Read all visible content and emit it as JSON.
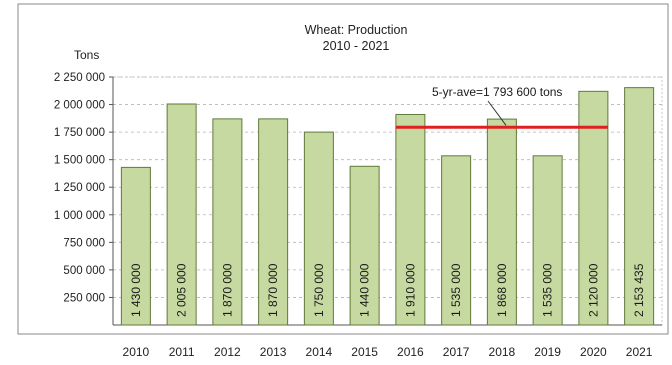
{
  "chart_data": {
    "type": "bar",
    "title": [
      "Wheat: Production",
      "2010 - 2021"
    ],
    "ylabel": "Tons",
    "xlabel": "",
    "categories": [
      "2010",
      "2011",
      "2012",
      "2013",
      "2014",
      "2015",
      "2016",
      "2017",
      "2018",
      "2019",
      "2020",
      "2021"
    ],
    "values": [
      1430000,
      2005000,
      1870000,
      1870000,
      1750000,
      1440000,
      1910000,
      1535000,
      1868000,
      1535000,
      2120000,
      2153435
    ],
    "data_labels": [
      "1 430 000",
      "2 005 000",
      "1 870 000",
      "1 870 000",
      "1 750 000",
      "1 440 000",
      "1 910 000",
      "1 535 000",
      "1 868 000",
      "1 535 000",
      "2 120 000",
      "2 153 435"
    ],
    "ylim": [
      0,
      2250000
    ],
    "yticks": [
      250000,
      500000,
      750000,
      1000000,
      1250000,
      1500000,
      1750000,
      2000000,
      2250000
    ],
    "ytick_labels": [
      "250 000",
      "500 000",
      "750 000",
      "1 000 000",
      "1 250 000",
      "1 500 000",
      "1 750 000",
      "2 000 000",
      "2 250 000"
    ],
    "grid": true,
    "bar_color": "#c6d9a0",
    "bar_edge_color": "#5f7a3a",
    "reference_line": {
      "value": 1793600,
      "from_category": "2016",
      "to_category": "2020",
      "label": "5-yr-ave=1 793 600 tons",
      "color": "#e02020"
    }
  }
}
